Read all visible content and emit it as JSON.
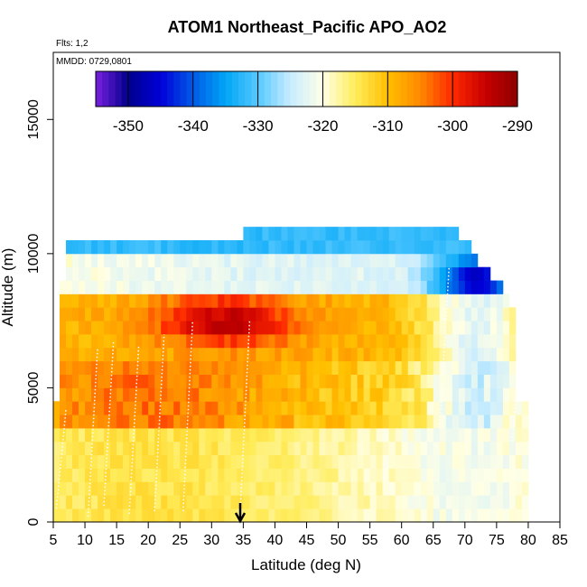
{
  "chart_data": {
    "type": "heatmap",
    "title": "ATOM1 Northeast_Pacific APO_AO2",
    "annotations": {
      "flights": "Flts: 1,2",
      "dates": "MMDD: 0729,0801"
    },
    "xlabel": "Latitude (deg N)",
    "ylabel": "Altitude (m)",
    "xlim": [
      5,
      85
    ],
    "ylim": [
      0,
      17500
    ],
    "x_ticks": [
      5,
      10,
      15,
      20,
      25,
      30,
      35,
      40,
      45,
      50,
      55,
      60,
      65,
      70,
      75,
      80,
      85
    ],
    "y_ticks": [
      0,
      5000,
      10000,
      15000
    ],
    "colorbar": {
      "min": -355,
      "max": -290,
      "ticks": [
        -350,
        -340,
        -330,
        -320,
        -310,
        -300,
        -290
      ],
      "colors": [
        "#7a1fe0",
        "#00008c",
        "#0000d8",
        "#005ae6",
        "#00a6f5",
        "#55c8ff",
        "#c8ecff",
        "#ffffe6",
        "#ffec5a",
        "#ffc000",
        "#ff8800",
        "#ff2a00",
        "#c80000",
        "#8c0000"
      ]
    },
    "grid": {
      "lat_step": 1,
      "alt_step": 500
    },
    "altitude_profile_m": [
      0,
      500,
      1000,
      1500,
      2000,
      2500,
      3000,
      3500,
      4000,
      4500,
      5000,
      5500,
      6000,
      6500,
      7000,
      7500,
      8000,
      8500,
      9000,
      9500,
      10000,
      10500
    ],
    "series_summary": [
      {
        "alt_m": 250,
        "lat_start": 5,
        "lat_end": 80,
        "range": [
          -316,
          -320
        ]
      },
      {
        "alt_m": 4750,
        "lat_start": 5,
        "lat_end": 78,
        "range": [
          -305,
          -330
        ]
      },
      {
        "alt_m": 7500,
        "lat_start": 6,
        "lat_end": 78,
        "range": [
          -307,
          -331
        ],
        "peak": {
          "lat": 32,
          "value": -294
        }
      },
      {
        "alt_m": 9000,
        "lat_start": 6,
        "lat_end": 77,
        "range": [
          -309,
          -350
        ],
        "min": {
          "lat": 76,
          "value": -354
        }
      },
      {
        "alt_m": 10750,
        "lat_start": 35,
        "lat_end": 67,
        "range": [
          -332,
          -334
        ]
      }
    ],
    "flight_tracks": "dotted white vertical profiles at latitudes 5-79",
    "marker": {
      "lat": 35,
      "label": "arrow"
    }
  }
}
